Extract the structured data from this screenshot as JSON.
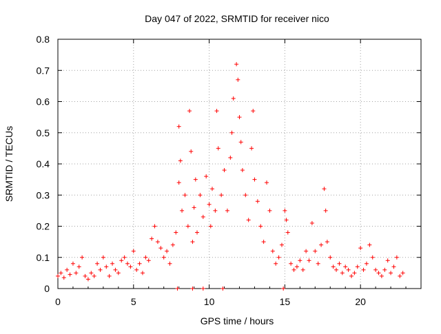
{
  "chart_data": {
    "type": "scatter",
    "title": "Day 047 of 2022, SRMTID for receiver nico",
    "xlabel": "GPS time / hours",
    "ylabel": "SRMTID / TECUs",
    "xlim": [
      0,
      24
    ],
    "ylim": [
      0,
      0.8
    ],
    "xticks": [
      0,
      5,
      10,
      15,
      20
    ],
    "yticks": [
      0,
      0.1,
      0.2,
      0.3,
      0.4,
      0.5,
      0.6,
      0.7,
      0.8
    ],
    "xtick_labels": [
      "0",
      "5",
      "10",
      "15",
      "20"
    ],
    "ytick_labels": [
      "0",
      "0.1",
      "0.2",
      "0.3",
      "0.4",
      "0.5",
      "0.6",
      "0.7",
      "0.8"
    ],
    "grid": true,
    "marker": "+",
    "color": "#ff0000",
    "series": [
      {
        "name": "SRMTID",
        "points": [
          [
            0.0,
            0.04
          ],
          [
            0.2,
            0.05
          ],
          [
            0.4,
            0.035
          ],
          [
            0.6,
            0.06
          ],
          [
            0.8,
            0.045
          ],
          [
            1.0,
            0.08
          ],
          [
            1.2,
            0.05
          ],
          [
            1.4,
            0.07
          ],
          [
            1.6,
            0.1
          ],
          [
            1.8,
            0.04
          ],
          [
            2.0,
            0.03
          ],
          [
            2.2,
            0.05
          ],
          [
            2.4,
            0.04
          ],
          [
            2.6,
            0.08
          ],
          [
            2.8,
            0.06
          ],
          [
            3.0,
            0.1
          ],
          [
            3.2,
            0.07
          ],
          [
            3.4,
            0.04
          ],
          [
            3.6,
            0.08
          ],
          [
            3.8,
            0.06
          ],
          [
            4.0,
            0.05
          ],
          [
            4.2,
            0.09
          ],
          [
            4.4,
            0.1
          ],
          [
            4.6,
            0.08
          ],
          [
            4.8,
            0.07
          ],
          [
            5.0,
            0.12
          ],
          [
            5.2,
            0.06
          ],
          [
            5.4,
            0.08
          ],
          [
            5.6,
            0.05
          ],
          [
            5.8,
            0.1
          ],
          [
            6.0,
            0.09
          ],
          [
            6.2,
            0.16
          ],
          [
            6.4,
            0.2
          ],
          [
            6.6,
            0.15
          ],
          [
            6.8,
            0.13
          ],
          [
            7.0,
            0.1
          ],
          [
            7.2,
            0.12
          ],
          [
            7.4,
            0.08
          ],
          [
            7.6,
            0.14
          ],
          [
            7.8,
            0.18
          ],
          [
            8.0,
            0.34
          ],
          [
            8.0,
            0.52
          ],
          [
            8.1,
            0.41
          ],
          [
            8.2,
            0.25
          ],
          [
            8.4,
            0.3
          ],
          [
            8.6,
            0.2
          ],
          [
            8.7,
            0.57
          ],
          [
            8.8,
            0.44
          ],
          [
            8.9,
            0.15
          ],
          [
            9.0,
            0.26
          ],
          [
            9.1,
            0.35
          ],
          [
            9.2,
            0.18
          ],
          [
            9.4,
            0.3
          ],
          [
            9.6,
            0.23
          ],
          [
            9.8,
            0.36
          ],
          [
            10.0,
            0.27
          ],
          [
            10.1,
            0.2
          ],
          [
            10.2,
            0.32
          ],
          [
            10.4,
            0.25
          ],
          [
            10.5,
            0.57
          ],
          [
            10.6,
            0.45
          ],
          [
            10.8,
            0.3
          ],
          [
            11.0,
            0.38
          ],
          [
            11.2,
            0.25
          ],
          [
            11.4,
            0.42
          ],
          [
            11.5,
            0.5
          ],
          [
            11.6,
            0.61
          ],
          [
            11.8,
            0.72
          ],
          [
            11.9,
            0.67
          ],
          [
            12.0,
            0.55
          ],
          [
            12.1,
            0.47
          ],
          [
            12.2,
            0.38
          ],
          [
            12.4,
            0.3
          ],
          [
            12.6,
            0.22
          ],
          [
            12.8,
            0.45
          ],
          [
            12.9,
            0.57
          ],
          [
            13.0,
            0.35
          ],
          [
            13.2,
            0.28
          ],
          [
            13.4,
            0.2
          ],
          [
            13.6,
            0.15
          ],
          [
            13.8,
            0.34
          ],
          [
            14.0,
            0.25
          ],
          [
            14.2,
            0.12
          ],
          [
            14.4,
            0.08
          ],
          [
            14.6,
            0.1
          ],
          [
            14.8,
            0.14
          ],
          [
            15.0,
            0.25
          ],
          [
            15.1,
            0.22
          ],
          [
            15.2,
            0.18
          ],
          [
            15.4,
            0.08
          ],
          [
            15.6,
            0.06
          ],
          [
            15.8,
            0.07
          ],
          [
            16.0,
            0.09
          ],
          [
            16.2,
            0.06
          ],
          [
            16.4,
            0.12
          ],
          [
            16.6,
            0.09
          ],
          [
            16.8,
            0.21
          ],
          [
            17.0,
            0.12
          ],
          [
            17.2,
            0.08
          ],
          [
            17.4,
            0.14
          ],
          [
            17.6,
            0.32
          ],
          [
            17.7,
            0.25
          ],
          [
            17.8,
            0.15
          ],
          [
            18.0,
            0.1
          ],
          [
            18.2,
            0.07
          ],
          [
            18.4,
            0.06
          ],
          [
            18.6,
            0.08
          ],
          [
            18.8,
            0.05
          ],
          [
            19.0,
            0.07
          ],
          [
            19.2,
            0.06
          ],
          [
            19.4,
            0.04
          ],
          [
            19.6,
            0.05
          ],
          [
            19.8,
            0.07
          ],
          [
            20.0,
            0.13
          ],
          [
            20.2,
            0.06
          ],
          [
            20.4,
            0.08
          ],
          [
            20.6,
            0.14
          ],
          [
            20.8,
            0.1
          ],
          [
            21.0,
            0.06
          ],
          [
            21.2,
            0.05
          ],
          [
            21.4,
            0.04
          ],
          [
            21.6,
            0.06
          ],
          [
            21.8,
            0.09
          ],
          [
            22.0,
            0.05
          ],
          [
            22.2,
            0.07
          ],
          [
            22.4,
            0.1
          ],
          [
            22.6,
            0.04
          ],
          [
            22.8,
            0.05
          ],
          [
            7.9,
            0.0
          ],
          [
            8.9,
            0.0
          ],
          [
            9.6,
            0.0
          ],
          [
            10.9,
            0.0
          ],
          [
            14.9,
            0.0
          ]
        ]
      }
    ]
  }
}
